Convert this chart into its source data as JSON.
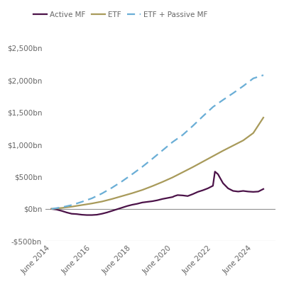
{
  "legend_labels": [
    "Active MF",
    "ETF",
    "ETF + Passive MF"
  ],
  "legend_colors": [
    "#4b1248",
    "#a89a5a",
    "#6aaed6"
  ],
  "active_mf_x": [
    2014.0,
    2014.25,
    2014.5,
    2014.75,
    2015.0,
    2015.25,
    2015.5,
    2015.75,
    2016.0,
    2016.25,
    2016.5,
    2016.75,
    2017.0,
    2017.25,
    2017.5,
    2017.75,
    2018.0,
    2018.25,
    2018.5,
    2018.75,
    2019.0,
    2019.25,
    2019.5,
    2019.75,
    2020.0,
    2020.1,
    2020.25,
    2020.5,
    2020.75,
    2021.0,
    2021.25,
    2021.5,
    2021.75,
    2022.0,
    2022.1,
    2022.25,
    2022.5,
    2022.75,
    2023.0,
    2023.25,
    2023.5,
    2023.75,
    2024.0,
    2024.25,
    2024.5
  ],
  "active_mf_y": [
    0,
    -10,
    -30,
    -55,
    -75,
    -80,
    -90,
    -95,
    -95,
    -90,
    -75,
    -55,
    -30,
    -5,
    20,
    45,
    65,
    80,
    100,
    110,
    120,
    135,
    155,
    170,
    185,
    200,
    215,
    210,
    200,
    230,
    265,
    290,
    320,
    360,
    580,
    540,
    400,
    320,
    280,
    270,
    280,
    270,
    265,
    270,
    310
  ],
  "etf_x": [
    2014.0,
    2014.5,
    2015.0,
    2015.5,
    2016.0,
    2016.5,
    2017.0,
    2017.5,
    2018.0,
    2018.5,
    2019.0,
    2019.5,
    2020.0,
    2020.5,
    2021.0,
    2021.5,
    2022.0,
    2022.5,
    2023.0,
    2023.5,
    2024.0,
    2024.5
  ],
  "etf_y": [
    0,
    15,
    35,
    60,
    85,
    115,
    155,
    200,
    245,
    295,
    355,
    420,
    490,
    570,
    650,
    735,
    820,
    905,
    985,
    1065,
    1180,
    1420
  ],
  "etf_passive_x": [
    2014.0,
    2014.5,
    2015.0,
    2015.5,
    2016.0,
    2016.5,
    2017.0,
    2017.5,
    2018.0,
    2018.5,
    2019.0,
    2019.5,
    2020.0,
    2020.5,
    2021.0,
    2021.5,
    2022.0,
    2022.5,
    2023.0,
    2023.5,
    2024.0,
    2024.5
  ],
  "etf_passive_y": [
    0,
    25,
    60,
    110,
    165,
    240,
    330,
    430,
    540,
    655,
    780,
    910,
    1040,
    1150,
    1290,
    1440,
    1585,
    1695,
    1800,
    1910,
    2030,
    2080
  ],
  "ylim": [
    -500,
    2700
  ],
  "yticks": [
    -500,
    0,
    500,
    1000,
    1500,
    2000,
    2500
  ],
  "ytick_labels": [
    "-$500bn",
    "$0bn",
    "$500bn",
    "$1,000bn",
    "$1,500bn",
    "$2,000bn",
    "$2,500bn"
  ],
  "xlim": [
    2013.7,
    2025.1
  ],
  "xticks": [
    2014,
    2016,
    2018,
    2020,
    2022,
    2024
  ],
  "xtick_labels": [
    "June 2014",
    "June 2016",
    "June 2018",
    "June 2020",
    "June 2022",
    "June 2024"
  ],
  "zero_line_color": "#909090",
  "bottom_line_color": "#b0b0b0",
  "text_color": "#666666",
  "background_color": "#ffffff",
  "active_mf_color": "#4b1248",
  "etf_color": "#a89a5a",
  "etf_passive_color": "#6aaed6"
}
